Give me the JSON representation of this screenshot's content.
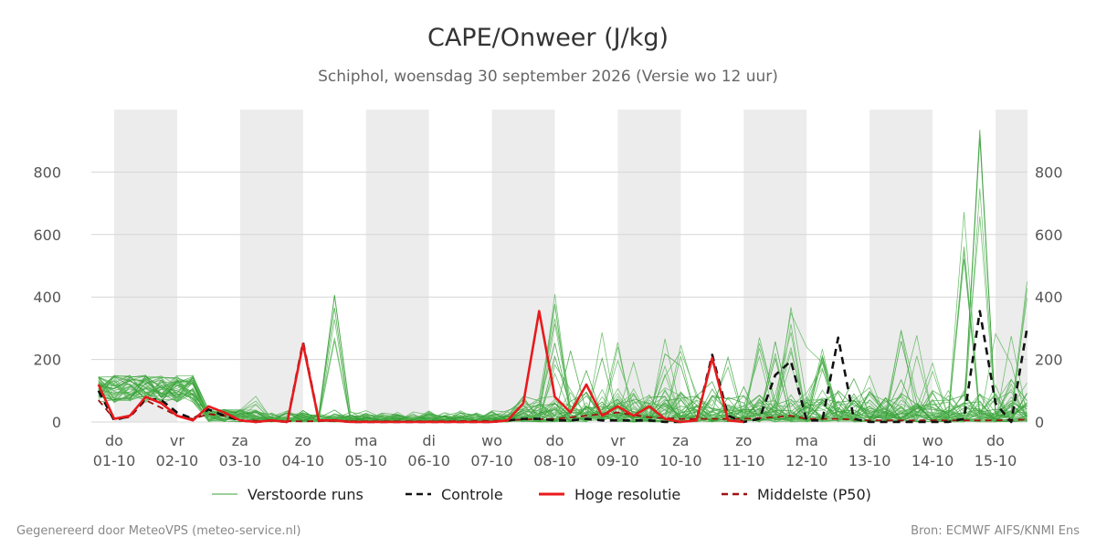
{
  "header": {
    "title": "CAPE/Onweer (J/kg)",
    "subtitle": "Schiphol, woensdag 30 september 2026 (Versie wo 12 uur)"
  },
  "footer": {
    "left": "Gegenereerd door MeteoVPS (meteo-service.nl)",
    "right": "Bron: ECMWF AIFS/KNMI Ens"
  },
  "legend": [
    {
      "key": "ens",
      "label": "Verstoorde runs",
      "color": "#3aa23a",
      "style": "thin"
    },
    {
      "key": "ctrl",
      "label": "Controle",
      "color": "#111111",
      "style": "dashed"
    },
    {
      "key": "hres",
      "label": "Hoge resolutie",
      "color": "#e8191c",
      "style": "solid"
    },
    {
      "key": "p50",
      "label": "Middelste (P50)",
      "color": "#a01010",
      "style": "dashed"
    }
  ],
  "chart_data": {
    "type": "line",
    "x_unit": "days from 01-10 00:00",
    "xlim": [
      -0.23,
      14.5
    ],
    "ylim": [
      0,
      1000
    ],
    "yticks": [
      0,
      200,
      400,
      600,
      800
    ],
    "grid": true,
    "legend_position": "bottom",
    "xticks": [
      {
        "x": 0,
        "day": "do",
        "date": "01-10"
      },
      {
        "x": 1,
        "day": "vr",
        "date": "02-10"
      },
      {
        "x": 2,
        "day": "za",
        "date": "03-10"
      },
      {
        "x": 3,
        "day": "zo",
        "date": "04-10"
      },
      {
        "x": 4,
        "day": "ma",
        "date": "05-10"
      },
      {
        "x": 5,
        "day": "di",
        "date": "06-10"
      },
      {
        "x": 6,
        "day": "wo",
        "date": "07-10"
      },
      {
        "x": 7,
        "day": "do",
        "date": "08-10"
      },
      {
        "x": 8,
        "day": "vr",
        "date": "09-10"
      },
      {
        "x": 9,
        "day": "za",
        "date": "10-10"
      },
      {
        "x": 10,
        "day": "zo",
        "date": "11-10"
      },
      {
        "x": 11,
        "day": "ma",
        "date": "12-10"
      },
      {
        "x": 12,
        "day": "di",
        "date": "13-10"
      },
      {
        "x": 13,
        "day": "wo",
        "date": "14-10"
      },
      {
        "x": 14,
        "day": "do",
        "date": "15-10"
      }
    ],
    "shaded_days": [
      0,
      2,
      4,
      6,
      8,
      10,
      12,
      14
    ],
    "series": [
      {
        "name": "Hoge resolutie",
        "key": "hres",
        "x": [
          -0.25,
          0,
          0.25,
          0.5,
          0.75,
          1,
          1.25,
          1.5,
          1.75,
          2,
          2.25,
          2.5,
          2.75,
          3,
          3.25,
          3.5,
          3.75,
          4,
          4.25,
          4.5,
          4.75,
          5,
          5.25,
          5.5,
          5.75,
          6,
          6.25,
          6.5,
          6.75,
          7,
          7.25,
          7.5,
          7.75,
          8,
          8.25,
          8.5,
          8.75,
          9,
          9.25,
          9.5,
          9.75,
          10
        ],
        "y": [
          120,
          10,
          20,
          80,
          60,
          20,
          5,
          50,
          30,
          5,
          0,
          5,
          0,
          250,
          5,
          5,
          0,
          0,
          0,
          0,
          0,
          0,
          0,
          0,
          0,
          0,
          5,
          60,
          355,
          80,
          30,
          120,
          20,
          50,
          20,
          50,
          10,
          0,
          5,
          205,
          5,
          0
        ]
      },
      {
        "name": "Controle",
        "key": "ctrl",
        "x": [
          -0.25,
          0,
          0.25,
          0.5,
          0.75,
          1,
          1.25,
          1.5,
          1.75,
          2,
          2.25,
          2.5,
          2.75,
          3,
          3.25,
          3.5,
          3.75,
          4,
          4.25,
          4.5,
          4.75,
          5,
          5.25,
          5.5,
          5.75,
          6,
          6.25,
          6.5,
          6.75,
          7,
          7.25,
          7.5,
          7.75,
          8,
          8.25,
          8.5,
          8.75,
          9,
          9.25,
          9.5,
          9.75,
          10,
          10.25,
          10.5,
          10.75,
          11,
          11.25,
          11.5,
          11.75,
          12,
          12.25,
          12.5,
          12.75,
          13,
          13.25,
          13.5,
          13.75,
          14,
          14.25,
          14.5
        ],
        "y": [
          100,
          5,
          20,
          75,
          70,
          30,
          10,
          40,
          20,
          5,
          0,
          5,
          0,
          255,
          5,
          5,
          0,
          0,
          0,
          0,
          0,
          0,
          0,
          0,
          0,
          0,
          5,
          10,
          10,
          5,
          5,
          10,
          5,
          5,
          5,
          5,
          0,
          0,
          5,
          215,
          20,
          0,
          10,
          150,
          195,
          5,
          5,
          270,
          10,
          0,
          0,
          0,
          0,
          0,
          0,
          10,
          355,
          60,
          0,
          300
        ]
      },
      {
        "name": "Middelste (P50)",
        "key": "p50",
        "x": [
          -0.25,
          0,
          0.25,
          0.5,
          0.75,
          1,
          1.25,
          1.5,
          1.75,
          2,
          2.5,
          3,
          3.5,
          4,
          4.5,
          5,
          5.5,
          6,
          6.5,
          7,
          7.5,
          8,
          8.5,
          9,
          9.5,
          10,
          10.5,
          10.75,
          11,
          11.5,
          12,
          12.5,
          13,
          13.5,
          14,
          14.5
        ],
        "y": [
          70,
          10,
          15,
          70,
          45,
          20,
          10,
          25,
          20,
          5,
          3,
          2,
          3,
          2,
          2,
          2,
          3,
          3,
          8,
          10,
          20,
          30,
          15,
          10,
          10,
          10,
          15,
          20,
          10,
          10,
          5,
          5,
          5,
          5,
          5,
          8
        ]
      }
    ]
  }
}
